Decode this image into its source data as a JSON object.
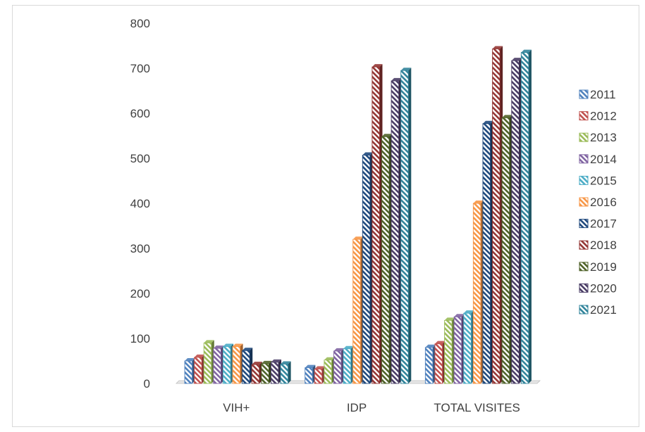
{
  "chart_data": {
    "type": "bar",
    "style": "3d-clustered-column",
    "title": "",
    "xlabel": "",
    "ylabel": "",
    "ylim": [
      0,
      800
    ],
    "yticks": [
      0,
      100,
      200,
      300,
      400,
      500,
      600,
      700,
      800
    ],
    "grid": false,
    "legend": "right",
    "categories": [
      "VIH+",
      "IDP",
      "TOTAL VISITES"
    ],
    "series": [
      {
        "name": "2011",
        "color": "#4f81bd",
        "values": [
          50,
          35,
          80
        ]
      },
      {
        "name": "2012",
        "color": "#c0504d",
        "values": [
          58,
          32,
          88
        ]
      },
      {
        "name": "2013",
        "color": "#9bbb59",
        "values": [
          90,
          52,
          140
        ]
      },
      {
        "name": "2014",
        "color": "#8064a2",
        "values": [
          78,
          72,
          148
        ]
      },
      {
        "name": "2015",
        "color": "#4bacc6",
        "values": [
          82,
          77,
          156
        ]
      },
      {
        "name": "2016",
        "color": "#f79646",
        "values": [
          82,
          320,
          400
        ]
      },
      {
        "name": "2017",
        "color": "#1f497d",
        "values": [
          73,
          507,
          577
        ]
      },
      {
        "name": "2018",
        "color": "#943634",
        "values": [
          42,
          703,
          743
        ]
      },
      {
        "name": "2019",
        "color": "#4f6228",
        "values": [
          44,
          548,
          590
        ]
      },
      {
        "name": "2020",
        "color": "#4a3d66",
        "values": [
          47,
          672,
          717
        ]
      },
      {
        "name": "2021",
        "color": "#31849b",
        "values": [
          43,
          695,
          735
        ]
      }
    ]
  }
}
